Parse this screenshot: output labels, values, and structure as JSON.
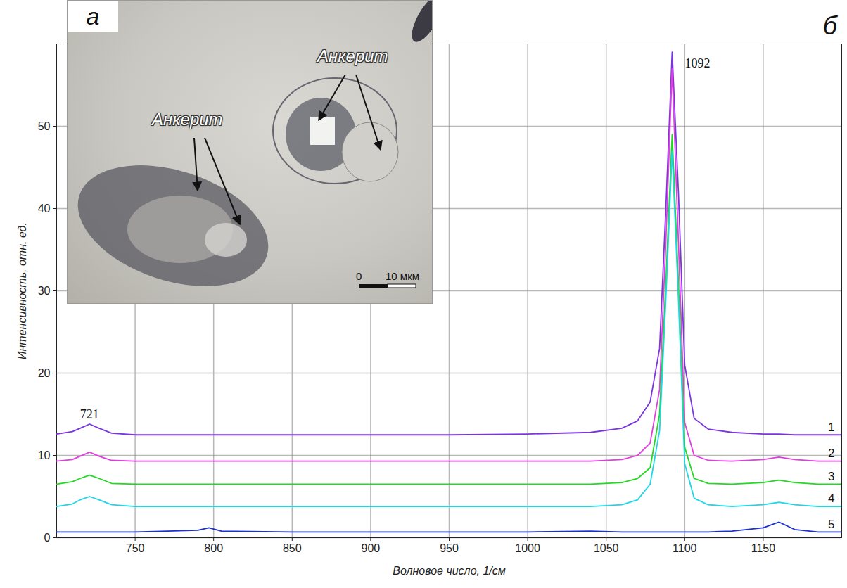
{
  "chart_data": {
    "type": "line",
    "x_label": "Волновое число, 1/см",
    "y_label": "Интенсивность, отн. ед.",
    "panel_label": "б",
    "x": [
      700,
      710,
      715,
      721,
      727,
      735,
      750,
      790,
      797,
      805,
      850,
      900,
      950,
      1000,
      1040,
      1060,
      1070,
      1078,
      1084,
      1088,
      1092,
      1096,
      1100,
      1106,
      1115,
      1130,
      1150,
      1160,
      1170,
      1185,
      1200
    ],
    "series": [
      {
        "name": "1",
        "color": "#7b35e0",
        "values": [
          12.6,
          12.9,
          13.3,
          13.8,
          13.3,
          12.7,
          12.5,
          12.5,
          12.5,
          12.5,
          12.5,
          12.5,
          12.5,
          12.6,
          12.8,
          13.3,
          14.2,
          16.5,
          23,
          40,
          59,
          42,
          21,
          14.5,
          13.2,
          12.8,
          12.6,
          12.6,
          12.5,
          12.5,
          12.5
        ]
      },
      {
        "name": "2",
        "color": "#e03ee0",
        "values": [
          9.3,
          9.5,
          9.9,
          10.4,
          9.9,
          9.4,
          9.3,
          9.3,
          9.3,
          9.3,
          9.3,
          9.3,
          9.3,
          9.3,
          9.3,
          9.5,
          10,
          11.5,
          18,
          36,
          57,
          36,
          14,
          10,
          9.4,
          9.3,
          9.5,
          9.8,
          9.5,
          9.3,
          9.3
        ]
      },
      {
        "name": "3",
        "color": "#22d822",
        "values": [
          6.5,
          6.8,
          7.2,
          7.6,
          7.2,
          6.6,
          6.5,
          6.5,
          6.5,
          6.5,
          6.5,
          6.5,
          6.5,
          6.5,
          6.5,
          6.7,
          7.2,
          8.5,
          15,
          31,
          49,
          31,
          11,
          7.2,
          6.6,
          6.5,
          6.7,
          7.0,
          6.7,
          6.5,
          6.5
        ]
      },
      {
        "name": "4",
        "color": "#1fd6e6",
        "values": [
          3.8,
          4.1,
          4.6,
          5.0,
          4.6,
          4.0,
          3.8,
          3.8,
          3.8,
          3.8,
          3.8,
          3.8,
          3.8,
          3.8,
          3.8,
          4.0,
          4.6,
          6.5,
          13,
          29,
          47,
          29,
          9,
          4.8,
          4.0,
          3.8,
          4.0,
          4.3,
          4.0,
          3.8,
          3.8
        ]
      },
      {
        "name": "5",
        "color": "#1a30d0",
        "values": [
          0.7,
          0.7,
          0.7,
          0.7,
          0.7,
          0.7,
          0.7,
          0.9,
          1.2,
          0.8,
          0.7,
          0.7,
          0.7,
          0.7,
          0.8,
          0.7,
          0.7,
          0.7,
          0.7,
          0.7,
          0.7,
          0.7,
          0.7,
          0.7,
          0.7,
          0.8,
          1.2,
          1.9,
          1.0,
          0.7,
          0.7
        ]
      }
    ],
    "xlim": [
      700,
      1200
    ],
    "ylim": [
      0,
      60
    ],
    "xticks": [
      750,
      800,
      850,
      900,
      950,
      1000,
      1050,
      1100,
      1150
    ],
    "yticks": [
      0,
      10,
      20,
      30,
      40,
      50
    ],
    "grid": true,
    "peak_labels": [
      721,
      1092
    ],
    "inset": {
      "panel_label": "а",
      "labels": [
        "Анкерит",
        "Анкерит"
      ],
      "scale_bar": {
        "from": 0,
        "to": "10 мкм"
      }
    }
  }
}
